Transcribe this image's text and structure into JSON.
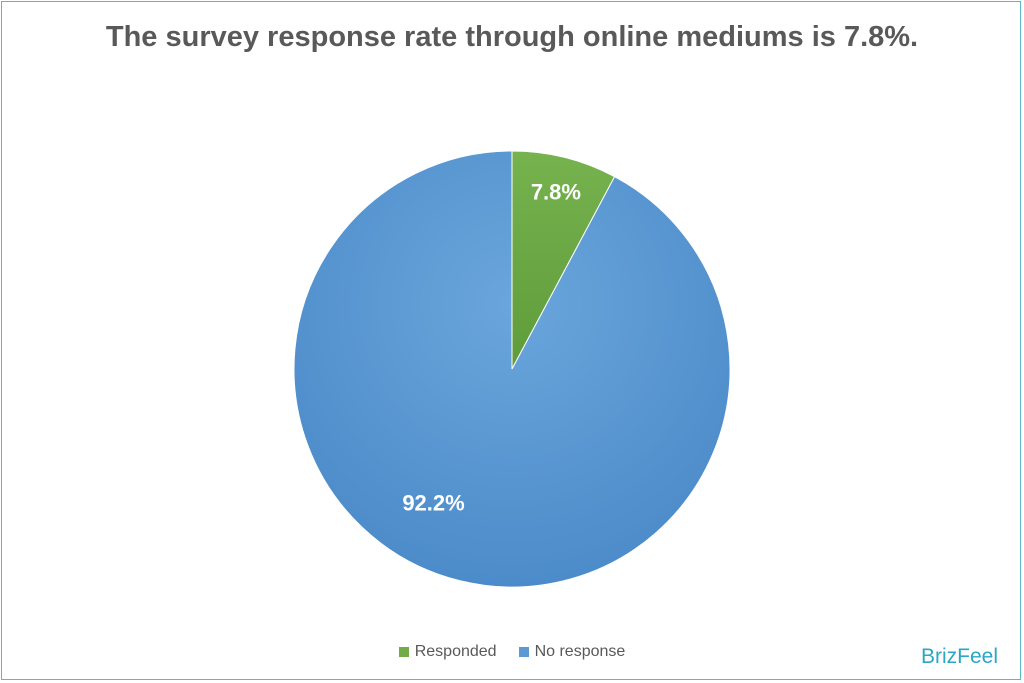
{
  "chart_data": {
    "type": "pie",
    "title": "The survey response rate through online mediums is 7.8%.",
    "slices": [
      {
        "label": "Responded",
        "value": 7.8,
        "data_label": "7.8%",
        "color": "#70ad47"
      },
      {
        "label": "No response",
        "value": 92.2,
        "data_label": "92.2%",
        "color": "#5b9bd5"
      }
    ],
    "legend_position": "bottom"
  },
  "brand": "BrizFeel"
}
